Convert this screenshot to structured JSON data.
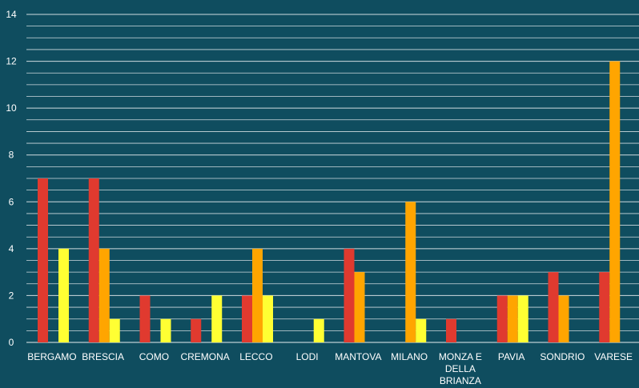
{
  "chart_data": {
    "type": "bar",
    "categories": [
      "BERGAMO",
      "BRESCIA",
      "COMO",
      "CREMONA",
      "LECCO",
      "LODI",
      "MANTOVA",
      "MILANO",
      "MONZA E DELLA BRIANZA",
      "PAVIA",
      "SONDRIO",
      "VARESE"
    ],
    "series": [
      {
        "color": "#e03a2f",
        "values": [
          7,
          7,
          2,
          1,
          2,
          0,
          4,
          0,
          1,
          2,
          3,
          3
        ]
      },
      {
        "color": "#ffa500",
        "values": [
          0,
          4,
          0,
          0,
          4,
          0,
          3,
          6,
          0,
          2,
          2,
          12
        ]
      },
      {
        "color": "#ffff33",
        "values": [
          4,
          1,
          1,
          2,
          2,
          1,
          0,
          1,
          0,
          2,
          0,
          0
        ]
      }
    ],
    "yticks": [
      0,
      2,
      4,
      6,
      8,
      10,
      12,
      14
    ],
    "ylim": [
      0,
      14
    ],
    "grid": true,
    "background": "#0f4d5f",
    "grid_color": "#ffffff"
  }
}
